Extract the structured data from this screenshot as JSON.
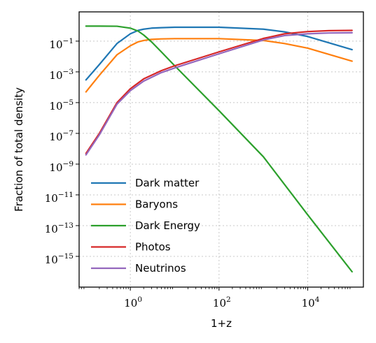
{
  "chart_data": {
    "type": "line",
    "title": "",
    "xlabel": "1+z",
    "ylabel": "Fraction of total density",
    "xscale": "log",
    "yscale": "log",
    "xlim": [
      0.07,
      180000
    ],
    "ylim": [
      1e-17,
      8
    ],
    "grid": true,
    "legend_position": "lower-left",
    "x_ticks": [
      {
        "base": "10",
        "exp": "0",
        "value": 1
      },
      {
        "base": "10",
        "exp": "2",
        "value": 100
      },
      {
        "base": "10",
        "exp": "4",
        "value": 10000
      }
    ],
    "y_ticks": [
      {
        "base": "10",
        "exp": "−1",
        "value": 0.1
      },
      {
        "base": "10",
        "exp": "−3",
        "value": 0.001
      },
      {
        "base": "10",
        "exp": "−5",
        "value": 1e-05
      },
      {
        "base": "10",
        "exp": "−7",
        "value": 1e-07
      },
      {
        "base": "10",
        "exp": "−9",
        "value": 1e-09
      },
      {
        "base": "10",
        "exp": "−11",
        "value": 1e-11
      },
      {
        "base": "10",
        "exp": "−13",
        "value": 1e-13
      },
      {
        "base": "10",
        "exp": "−15",
        "value": 1e-15
      }
    ],
    "series": [
      {
        "name": "Dark matter",
        "color": "#1f77b4",
        "x": [
          0.1,
          0.2,
          0.5,
          1,
          1.5,
          2,
          3,
          5,
          10,
          100,
          1000,
          3000,
          10000,
          100000
        ],
        "y": [
          0.0003,
          0.003,
          0.07,
          0.3,
          0.5,
          0.6,
          0.7,
          0.75,
          0.8,
          0.8,
          0.6,
          0.4,
          0.2,
          0.028
        ]
      },
      {
        "name": "Baryons",
        "color": "#ff7f0e",
        "x": [
          0.1,
          0.2,
          0.5,
          1,
          1.5,
          2,
          3,
          5,
          10,
          100,
          1000,
          3000,
          10000,
          100000
        ],
        "y": [
          5e-05,
          0.0006,
          0.013,
          0.05,
          0.09,
          0.11,
          0.13,
          0.14,
          0.145,
          0.145,
          0.11,
          0.07,
          0.035,
          0.005
        ]
      },
      {
        "name": "Dark Energy",
        "color": "#2ca02c",
        "x": [
          0.1,
          0.2,
          0.5,
          1,
          1.5,
          2,
          3,
          5,
          10,
          100,
          1000,
          10000,
          100000
        ],
        "y": [
          0.95,
          0.95,
          0.93,
          0.7,
          0.45,
          0.25,
          0.09,
          0.02,
          0.0025,
          3e-06,
          3e-09,
          5e-13,
          1e-16
        ]
      },
      {
        "name": "Photos",
        "color": "#d62728",
        "x": [
          0.1,
          0.2,
          0.5,
          1,
          2,
          5,
          10,
          100,
          1000,
          3000,
          10000,
          30000,
          100000
        ],
        "y": [
          5e-09,
          1e-07,
          1e-05,
          8e-05,
          0.00035,
          0.0012,
          0.0025,
          0.02,
          0.15,
          0.3,
          0.42,
          0.48,
          0.5
        ]
      },
      {
        "name": "Neutrinos",
        "color": "#9467bd",
        "x": [
          0.1,
          0.2,
          0.5,
          1,
          2,
          5,
          10,
          100,
          1000,
          3000,
          10000,
          30000,
          100000
        ],
        "y": [
          4e-09,
          8e-08,
          8e-06,
          6e-05,
          0.00025,
          0.0009,
          0.0018,
          0.015,
          0.12,
          0.23,
          0.3,
          0.34,
          0.35
        ]
      }
    ]
  }
}
